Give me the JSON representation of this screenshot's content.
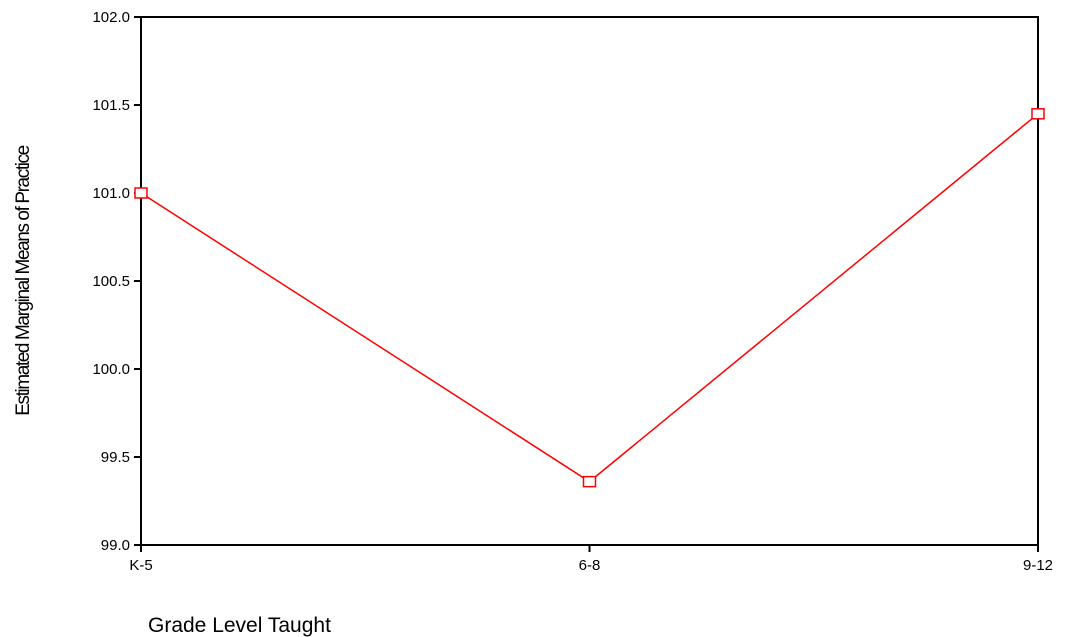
{
  "chart_data": {
    "type": "line",
    "categories": [
      "K-5",
      "6-8",
      "9-12"
    ],
    "series": [
      {
        "values": [
          101.0,
          99.36,
          101.45
        ],
        "marker": "square",
        "color": "#ff0000"
      }
    ],
    "xlabel": "Grade Level Taught",
    "ylabel": "Estimated Marginal Means of Practice",
    "ylim": [
      99.0,
      102.0
    ],
    "yticks": [
      "99.0",
      "99.5",
      "100.0",
      "100.5",
      "101.0",
      "101.5",
      "102.0"
    ],
    "grid": false,
    "legend": "none"
  },
  "colors": {
    "series": "#ff0000",
    "axis": "#000000",
    "background": "#ffffff"
  }
}
